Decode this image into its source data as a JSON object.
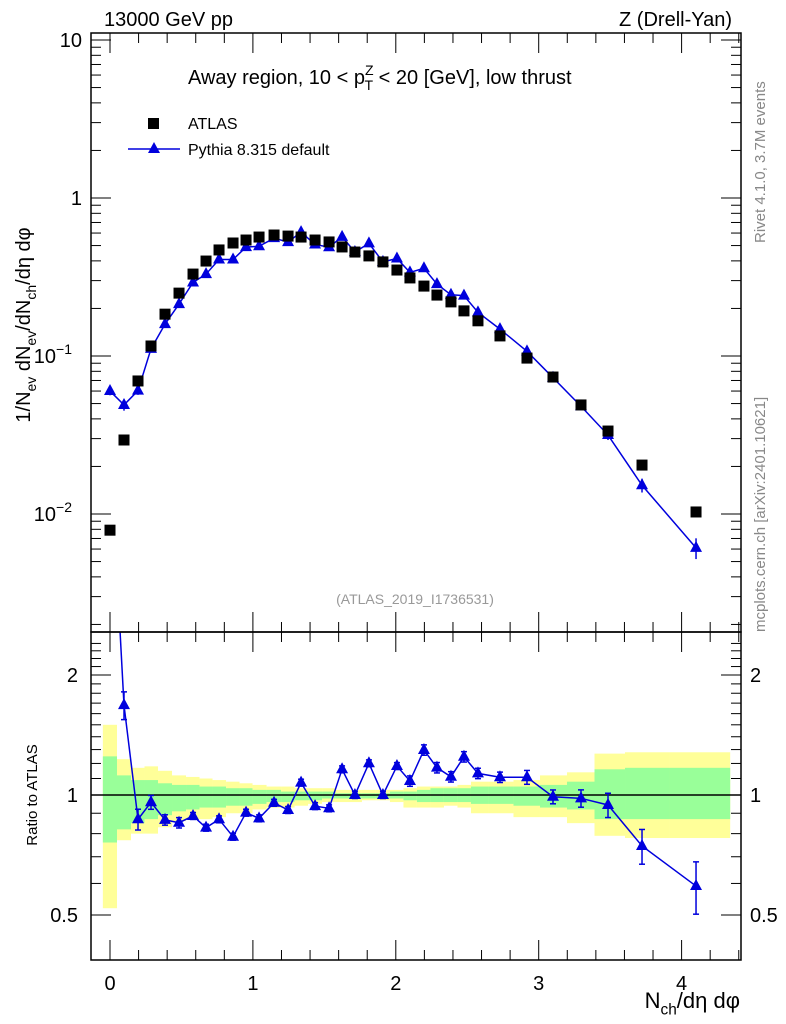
{
  "header": {
    "left": "13000 GeV pp",
    "right": "Z (Drell-Yan)"
  },
  "side_labels": {
    "rivet": "Rivet 4.1.0,  3.7M events",
    "mcplots": "mcplots.cern.ch [arXiv:2401.10621]"
  },
  "colors": {
    "atlas": "#000000",
    "pythia": "#0000dd",
    "band_total": "#ffff99",
    "band_stat": "#99ff99"
  },
  "chart_data": [
    {
      "type": "scatter",
      "title_parts": [
        {
          "text": "Away region, 10 < p",
          "style": "normal"
        },
        {
          "text": "Z",
          "style": "sup"
        },
        {
          "text": "T",
          "style": "sub"
        },
        {
          "text": " < 20 [GeV], low thrust",
          "style": "normal"
        }
      ],
      "watermark": "(ATLAS_2019_I1736531)",
      "ylabel_parts": [
        {
          "text": "1/N",
          "style": "normal"
        },
        {
          "text": "ev",
          "style": "sub"
        },
        {
          "text": " dN",
          "style": "normal"
        },
        {
          "text": "ev",
          "style": "sub"
        },
        {
          "text": "/dN",
          "style": "normal"
        },
        {
          "text": "ch",
          "style": "sub"
        },
        {
          "text": "/dη dφ",
          "style": "normal"
        }
      ],
      "yscale": "log",
      "ylim": [
        0.0017,
        11
      ],
      "xlim": [
        -0.14,
        4.42
      ],
      "yticks": [
        {
          "value": 10,
          "label": "10",
          "exp": ""
        },
        {
          "value": 1,
          "label": "1",
          "exp": ""
        },
        {
          "value": 0.1,
          "label": "10",
          "exp": "−1"
        },
        {
          "value": 0.01,
          "label": "10",
          "exp": "−2"
        }
      ],
      "legend": [
        {
          "name": "ATLAS",
          "marker": "square"
        },
        {
          "name": "Pythia 8.315 default",
          "marker": "triangle"
        }
      ],
      "legend_position": "top-left",
      "x": [
        0,
        0.098,
        0.196,
        0.287,
        0.385,
        0.483,
        0.581,
        0.672,
        0.763,
        0.861,
        0.952,
        1.043,
        1.148,
        1.246,
        1.337,
        1.435,
        1.533,
        1.624,
        1.714,
        1.812,
        1.91,
        2.008,
        2.099,
        2.197,
        2.288,
        2.386,
        2.477,
        2.575,
        2.729,
        2.918,
        3.1,
        3.296,
        3.485,
        3.723,
        4.101
      ],
      "series": [
        {
          "name": "ATLAS",
          "values": [
            0.0079,
            0.0294,
            0.0695,
            0.1157,
            0.184,
            0.25,
            0.33,
            0.399,
            0.469,
            0.519,
            0.542,
            0.566,
            0.583,
            0.574,
            0.566,
            0.542,
            0.527,
            0.49,
            0.455,
            0.43,
            0.394,
            0.35,
            0.312,
            0.277,
            0.243,
            0.22,
            0.193,
            0.167,
            0.134,
            0.097,
            0.0736,
            0.049,
            0.0335,
            0.0204,
            0.0103
          ]
        },
        {
          "name": "Pythia 8.315 default",
          "values": [
            0.06,
            0.049,
            0.0604,
            0.111,
            0.159,
            0.213,
            0.292,
            0.33,
            0.408,
            0.408,
            0.489,
            0.495,
            0.557,
            0.526,
            0.608,
            0.508,
            0.488,
            0.568,
            0.455,
            0.516,
            0.394,
            0.414,
            0.338,
            0.359,
            0.285,
            0.244,
            0.241,
            0.189,
            0.148,
            0.107,
            0.0729,
            0.0481,
            0.0316,
            0.0152,
            0.0061
          ],
          "rel_err": [
            0.06,
            0.08,
            0.06,
            0.04,
            0.03,
            0.03,
            0.02,
            0.02,
            0.02,
            0.02,
            0.02,
            0.02,
            0.02,
            0.02,
            0.02,
            0.02,
            0.02,
            0.02,
            0.02,
            0.02,
            0.02,
            0.02,
            0.03,
            0.03,
            0.03,
            0.03,
            0.03,
            0.03,
            0.03,
            0.04,
            0.04,
            0.05,
            0.07,
            0.1,
            0.15
          ]
        }
      ]
    },
    {
      "type": "line",
      "ylabel": "Ratio to ATLAS",
      "xlabel_parts": [
        {
          "text": "N",
          "style": "normal"
        },
        {
          "text": "ch",
          "style": "sub"
        },
        {
          "text": "/dη dφ",
          "style": "normal"
        }
      ],
      "yscale": "log",
      "ylim": [
        0.42,
        2.6
      ],
      "yticks": [
        {
          "value": 0.5,
          "label": "0.5"
        },
        {
          "value": 1,
          "label": "1"
        },
        {
          "value": 2,
          "label": "2"
        }
      ],
      "xticks": [
        {
          "value": 0,
          "label": "0"
        },
        {
          "value": 1,
          "label": "1"
        },
        {
          "value": 2,
          "label": "2"
        },
        {
          "value": 3,
          "label": "3"
        },
        {
          "value": 4,
          "label": "4"
        }
      ],
      "ratio_values": [
        7.6,
        1.68,
        0.869,
        0.959,
        0.866,
        0.852,
        0.886,
        0.828,
        0.869,
        0.786,
        0.903,
        0.874,
        0.956,
        0.917,
        1.074,
        0.938,
        0.926,
        1.16,
        1.0,
        1.201,
        1.0,
        1.182,
        1.084,
        1.297,
        1.171,
        1.111,
        1.247,
        1.133,
        1.108,
        1.108,
        0.99,
        0.981,
        0.944,
        0.745,
        0.591
      ],
      "bands": [
        [
          0.52,
          1.5,
          0.76,
          1.25
        ],
        [
          0.77,
          1.23,
          0.82,
          1.12
        ],
        [
          0.8,
          1.17,
          0.85,
          1.09
        ],
        [
          0.8,
          1.18,
          0.87,
          1.09
        ],
        [
          0.83,
          1.15,
          0.89,
          1.07
        ],
        [
          0.86,
          1.12,
          0.91,
          1.06
        ],
        [
          0.87,
          1.11,
          0.92,
          1.06
        ],
        [
          0.87,
          1.1,
          0.93,
          1.05
        ],
        [
          0.88,
          1.09,
          0.93,
          1.05
        ],
        [
          0.9,
          1.08,
          0.94,
          1.04
        ],
        [
          0.9,
          1.07,
          0.94,
          1.04
        ],
        [
          0.92,
          1.06,
          0.95,
          1.03
        ],
        [
          0.93,
          1.05,
          0.96,
          1.03
        ],
        [
          0.93,
          1.05,
          0.96,
          1.02
        ],
        [
          0.94,
          1.04,
          0.97,
          1.02
        ],
        [
          0.95,
          1.04,
          0.97,
          1.02
        ],
        [
          0.96,
          1.04,
          0.98,
          1.02
        ],
        [
          0.96,
          1.03,
          0.98,
          1.01
        ],
        [
          0.96,
          1.03,
          0.98,
          1.01
        ],
        [
          0.97,
          1.03,
          0.98,
          1.01
        ],
        [
          0.97,
          1.03,
          0.98,
          1.01
        ],
        [
          0.96,
          1.03,
          0.98,
          1.02
        ],
        [
          0.93,
          1.04,
          0.97,
          1.02
        ],
        [
          0.93,
          1.05,
          0.96,
          1.03
        ],
        [
          0.93,
          1.05,
          0.96,
          1.04
        ],
        [
          0.94,
          1.05,
          0.96,
          1.04
        ],
        [
          0.93,
          1.06,
          0.96,
          1.04
        ],
        [
          0.9,
          1.08,
          0.95,
          1.05
        ],
        [
          0.9,
          1.08,
          0.95,
          1.05
        ],
        [
          0.88,
          1.09,
          0.94,
          1.05
        ],
        [
          0.88,
          1.12,
          0.93,
          1.06
        ],
        [
          0.85,
          1.14,
          0.92,
          1.08
        ],
        [
          0.79,
          1.27,
          0.87,
          1.16
        ],
        [
          0.78,
          1.28,
          0.87,
          1.17
        ],
        [
          0.78,
          1.28,
          0.87,
          1.17
        ]
      ]
    }
  ]
}
